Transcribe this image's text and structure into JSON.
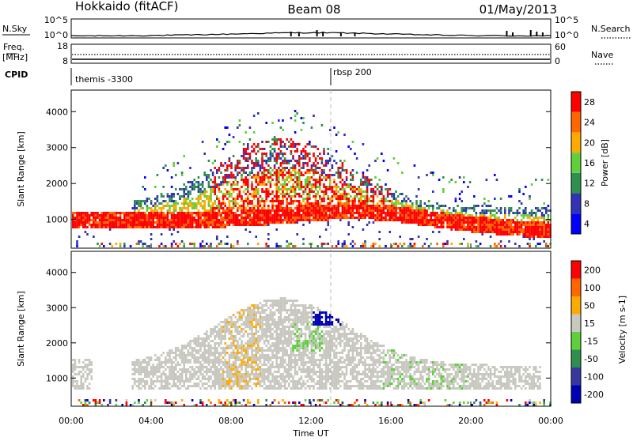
{
  "header": {
    "station": "Hokkaido (fitACF)",
    "beam": "Beam 08",
    "date": "01/May/2013"
  },
  "noise_panel": {
    "left_label": "N.Sky",
    "right_label": "N.Search",
    "left_ticks": [
      "10^5",
      "10^0"
    ],
    "right_ticks": [
      "10^5",
      "10^0"
    ]
  },
  "freq_panel": {
    "left_label": "Freq.",
    "left_unit": "[MHz]",
    "right_label": "Nave",
    "left_ticks": [
      "18",
      "8"
    ],
    "right_ticks": [
      "60",
      "0"
    ]
  },
  "cpid": {
    "label": "CPID",
    "entries": [
      {
        "text": "themis -3300",
        "start_hour": 0
      },
      {
        "text": "rbsp 200",
        "start_hour": 13.0
      }
    ]
  },
  "chart_data": [
    {
      "type": "heatmap",
      "quantity": "Power",
      "ylabel": "Slant Range [km]",
      "xlim_hours": [
        0,
        24
      ],
      "ylim_km": [
        200,
        4600
      ],
      "yticks": [
        1000,
        2000,
        3000,
        4000
      ],
      "colorbar": {
        "label": "Power [dB]",
        "ticks": [
          "4",
          "8",
          "12",
          "16",
          "20",
          "24",
          "28"
        ],
        "colors": [
          "#0000ff",
          "#3232b4",
          "#2f8f4f",
          "#5fd03c",
          "#ffaa00",
          "#ff6600",
          "#ff0000"
        ]
      }
    },
    {
      "type": "heatmap",
      "quantity": "Velocity",
      "ylabel": "Slant Range [km]",
      "xlabel": "Time UT",
      "xlim_hours": [
        0,
        24
      ],
      "ylim_km": [
        200,
        4600
      ],
      "yticks": [
        1000,
        2000,
        3000,
        4000
      ],
      "xticks": [
        "00:00",
        "04:00",
        "08:00",
        "12:00",
        "16:00",
        "20:00",
        "00:00"
      ],
      "colorbar": {
        "label": "Velocity [m s-1]",
        "ticks": [
          "200",
          "100",
          "50",
          "15",
          "-15",
          "-50",
          "-100",
          "-200"
        ],
        "colors": [
          "#0000b4",
          "#3737a0",
          "#2f8f4f",
          "#5fd03c",
          "#c8c8c0",
          "#ffaa00",
          "#ff6600",
          "#ff0000"
        ]
      }
    }
  ]
}
